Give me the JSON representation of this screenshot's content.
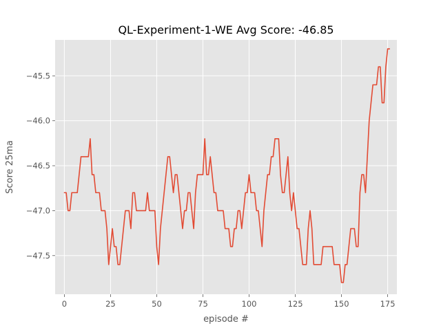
{
  "chart_data": {
    "type": "line",
    "title": "QL-Experiment-1-WE Avg Score: -46.85",
    "xlabel": "episode #",
    "ylabel": "Score 25ma",
    "xlim": [
      -5,
      180
    ],
    "ylim": [
      -47.93,
      -45.1
    ],
    "x_ticks": [
      0,
      25,
      50,
      75,
      100,
      125,
      150,
      175
    ],
    "y_ticks": [
      -45.5,
      -46.0,
      -46.5,
      -47.0,
      -47.5
    ],
    "x_tick_labels": [
      "0",
      "25",
      "50",
      "75",
      "100",
      "125",
      "150",
      "175"
    ],
    "y_tick_labels": [
      "−45.5",
      "−46.0",
      "−46.5",
      "−47.0",
      "−47.5"
    ],
    "grid": true,
    "style": "ggplot",
    "colors": {
      "background": "#e5e5e5",
      "grid": "#ffffff",
      "line": "#e24a33",
      "tick_label": "#555555"
    },
    "series": [
      {
        "x_start": 0,
        "x_step": 1,
        "values": [
          -46.8,
          -46.8,
          -47.0,
          -47.0,
          -46.8,
          -46.8,
          -46.8,
          -46.8,
          -46.6,
          -46.4,
          -46.4,
          -46.4,
          -46.4,
          -46.4,
          -46.2,
          -46.6,
          -46.6,
          -46.8,
          -46.8,
          -46.8,
          -47.0,
          -47.0,
          -47.0,
          -47.2,
          -47.6,
          -47.4,
          -47.2,
          -47.4,
          -47.4,
          -47.6,
          -47.6,
          -47.4,
          -47.2,
          -47.0,
          -47.0,
          -47.0,
          -47.2,
          -46.8,
          -46.8,
          -47.0,
          -47.0,
          -47.0,
          -47.0,
          -47.0,
          -47.0,
          -46.8,
          -47.0,
          -47.0,
          -47.0,
          -47.0,
          -47.4,
          -47.6,
          -47.2,
          -47.0,
          -46.8,
          -46.6,
          -46.4,
          -46.4,
          -46.6,
          -46.8,
          -46.6,
          -46.6,
          -46.8,
          -47.0,
          -47.2,
          -47.0,
          -47.0,
          -46.8,
          -46.8,
          -47.0,
          -47.2,
          -46.8,
          -46.6,
          -46.6,
          -46.6,
          -46.6,
          -46.2,
          -46.6,
          -46.6,
          -46.4,
          -46.6,
          -46.8,
          -46.8,
          -47.0,
          -47.0,
          -47.0,
          -47.0,
          -47.2,
          -47.2,
          -47.2,
          -47.4,
          -47.4,
          -47.2,
          -47.2,
          -47.0,
          -47.0,
          -47.2,
          -47.0,
          -46.8,
          -46.8,
          -46.6,
          -46.8,
          -46.8,
          -46.8,
          -47.0,
          -47.0,
          -47.2,
          -47.4,
          -47.0,
          -46.8,
          -46.6,
          -46.6,
          -46.4,
          -46.4,
          -46.2,
          -46.2,
          -46.2,
          -46.6,
          -46.8,
          -46.8,
          -46.6,
          -46.4,
          -46.8,
          -47.0,
          -46.8,
          -47.0,
          -47.2,
          -47.2,
          -47.4,
          -47.6,
          -47.6,
          -47.6,
          -47.2,
          -47.0,
          -47.2,
          -47.6,
          -47.6,
          -47.6,
          -47.6,
          -47.6,
          -47.4,
          -47.4,
          -47.4,
          -47.4,
          -47.4,
          -47.4,
          -47.6,
          -47.6,
          -47.6,
          -47.6,
          -47.8,
          -47.8,
          -47.6,
          -47.6,
          -47.4,
          -47.2,
          -47.2,
          -47.2,
          -47.4,
          -47.4,
          -46.8,
          -46.6,
          -46.6,
          -46.8,
          -46.4,
          -46.0,
          -45.8,
          -45.6,
          -45.6,
          -45.6,
          -45.4,
          -45.4,
          -45.8,
          -45.8,
          -45.4,
          -45.2,
          -45.2
        ]
      }
    ]
  }
}
